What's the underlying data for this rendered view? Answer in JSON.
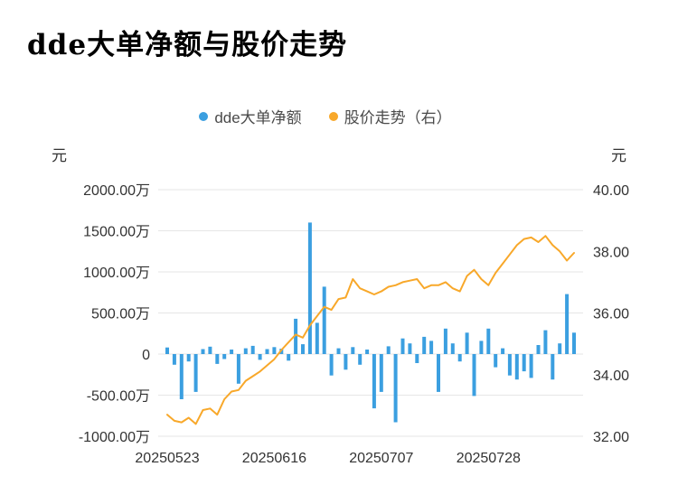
{
  "title": "dde大单净额与股价走势",
  "legend": [
    {
      "label": "dde大单净额",
      "color": "#3b9fe0"
    },
    {
      "label": "股价走势（右）",
      "color": "#f8a82a"
    }
  ],
  "left_axis": {
    "unit": "元",
    "ticks": [
      "2000.00万",
      "1500.00万",
      "1000.00万",
      "500.00万",
      "0",
      "-500.00万",
      "-1000.00万"
    ],
    "tick_values": [
      2000,
      1500,
      1000,
      500,
      0,
      -500,
      -1000
    ],
    "min": -1000,
    "max": 2000
  },
  "right_axis": {
    "unit": "元",
    "ticks": [
      "40.00",
      "38.00",
      "36.00",
      "34.00",
      "32.00"
    ],
    "tick_values": [
      40,
      38,
      36,
      34,
      32
    ],
    "min": 32,
    "max": 40
  },
  "x_axis": {
    "ticks": [
      {
        "label": "20250523",
        "index": 0
      },
      {
        "label": "20250616",
        "index": 15
      },
      {
        "label": "20250707",
        "index": 30
      },
      {
        "label": "20250728",
        "index": 45
      }
    ]
  },
  "chart_data": {
    "type": "bar+line",
    "title": "dde大单净额与股价走势",
    "grid": true,
    "legend_position": "top-center",
    "x": [
      "20250523",
      "20250526",
      "20250527",
      "20250528",
      "20250529",
      "20250530",
      "20250603",
      "20250604",
      "20250605",
      "20250606",
      "20250609",
      "20250610",
      "20250611",
      "20250612",
      "20250613",
      "20250616",
      "20250617",
      "20250618",
      "20250619",
      "20250620",
      "20250623",
      "20250624",
      "20250625",
      "20250626",
      "20250627",
      "20250630",
      "20250701",
      "20250702",
      "20250703",
      "20250704",
      "20250707",
      "20250708",
      "20250709",
      "20250710",
      "20250711",
      "20250714",
      "20250715",
      "20250716",
      "20250717",
      "20250718",
      "20250721",
      "20250722",
      "20250723",
      "20250724",
      "20250725",
      "20250728",
      "20250729",
      "20250730",
      "20250731",
      "20250801",
      "20250804",
      "20250805",
      "20250806",
      "20250807",
      "20250808",
      "20250811",
      "20250812",
      "20250813"
    ],
    "series": [
      {
        "name": "dde大单净额",
        "type": "bar",
        "axis": "left",
        "unit": "万元",
        "color": "#3b9fe0",
        "values": [
          80,
          -130,
          -550,
          -90,
          -460,
          60,
          90,
          -120,
          -60,
          55,
          -360,
          70,
          100,
          -70,
          60,
          85,
          65,
          -80,
          430,
          120,
          1600,
          380,
          820,
          -260,
          70,
          -190,
          85,
          -130,
          55,
          -660,
          -460,
          95,
          -830,
          190,
          130,
          -110,
          210,
          160,
          -460,
          310,
          130,
          -90,
          260,
          -510,
          160,
          310,
          -160,
          70,
          -260,
          -310,
          -210,
          -290,
          110,
          290,
          -310,
          130,
          730,
          260
        ]
      },
      {
        "name": "股价走势（右）",
        "type": "line",
        "axis": "right",
        "unit": "元",
        "color": "#f8a82a",
        "values": [
          32.7,
          32.5,
          32.45,
          32.6,
          32.4,
          32.85,
          32.9,
          32.7,
          33.2,
          33.45,
          33.5,
          33.8,
          33.95,
          34.1,
          34.3,
          34.5,
          34.8,
          35.05,
          35.3,
          35.2,
          35.6,
          35.9,
          36.2,
          36.1,
          36.45,
          36.5,
          37.1,
          36.8,
          36.7,
          36.6,
          36.7,
          36.85,
          36.9,
          37.0,
          37.05,
          37.1,
          36.8,
          36.9,
          36.9,
          37.0,
          36.8,
          36.7,
          37.2,
          37.4,
          37.1,
          36.9,
          37.3,
          37.6,
          37.9,
          38.2,
          38.4,
          38.45,
          38.3,
          38.5,
          38.2,
          38.0,
          37.7,
          37.95
        ]
      }
    ],
    "left_ylim": [
      -1000,
      2000
    ],
    "right_ylim": [
      32,
      40
    ]
  }
}
